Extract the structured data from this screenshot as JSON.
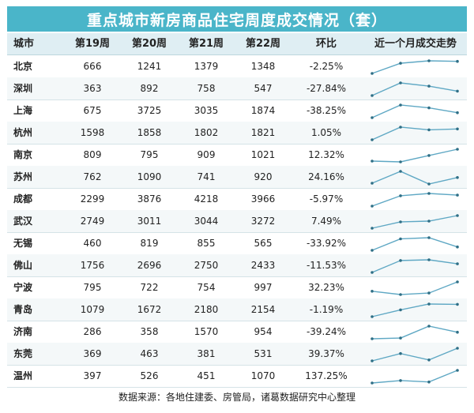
{
  "title": "重点城市新房商品住宅周度成交情况（套）",
  "colors": {
    "header_bar": "#4ab5c9",
    "spark_line": "#5fa8c4"
  },
  "chart_data": {
    "type": "table",
    "columns": [
      "城市",
      "第19周",
      "第20周",
      "第21周",
      "第22周",
      "环比",
      "近一个月成交走势"
    ],
    "categories": [
      "第19周",
      "第20周",
      "第21周",
      "第22周"
    ],
    "rows": [
      {
        "city": "北京",
        "values": [
          666,
          1241,
          1379,
          1348
        ],
        "change": "-2.25%"
      },
      {
        "city": "深圳",
        "values": [
          363,
          892,
          758,
          547
        ],
        "change": "-27.84%"
      },
      {
        "city": "上海",
        "values": [
          675,
          3725,
          3035,
          1874
        ],
        "change": "-38.25%"
      },
      {
        "city": "杭州",
        "values": [
          1598,
          1858,
          1802,
          1821
        ],
        "change": "1.05%"
      },
      {
        "city": "南京",
        "values": [
          809,
          795,
          909,
          1021
        ],
        "change": "12.32%"
      },
      {
        "city": "苏州",
        "values": [
          762,
          1090,
          741,
          920
        ],
        "change": "24.16%"
      },
      {
        "city": "成都",
        "values": [
          2299,
          3876,
          4218,
          3966
        ],
        "change": "-5.97%"
      },
      {
        "city": "武汉",
        "values": [
          2749,
          3011,
          3044,
          3272
        ],
        "change": "7.49%"
      },
      {
        "city": "无锡",
        "values": [
          460,
          819,
          855,
          565
        ],
        "change": "-33.92%"
      },
      {
        "city": "佛山",
        "values": [
          1756,
          2696,
          2750,
          2433
        ],
        "change": "-11.53%"
      },
      {
        "city": "宁波",
        "values": [
          795,
          722,
          754,
          997
        ],
        "change": "32.23%"
      },
      {
        "city": "青岛",
        "values": [
          1079,
          1672,
          2180,
          2154
        ],
        "change": "-1.19%"
      },
      {
        "city": "济南",
        "values": [
          286,
          358,
          1570,
          954
        ],
        "change": "-39.24%"
      },
      {
        "city": "东莞",
        "values": [
          369,
          463,
          381,
          531
        ],
        "change": "39.37%"
      },
      {
        "city": "温州",
        "values": [
          397,
          526,
          451,
          1070
        ],
        "change": "137.25%"
      }
    ]
  },
  "footer": "数据来源：各地住建委、房管局，诸葛数据研究中心整理"
}
